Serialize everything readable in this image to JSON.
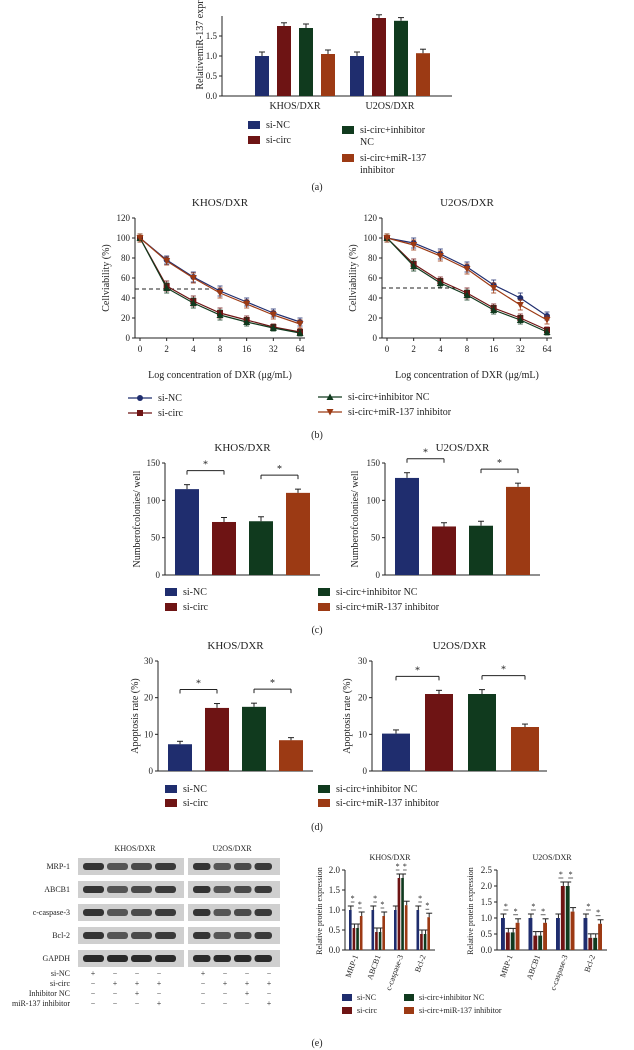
{
  "colors": {
    "si_NC": "#1f2d6e",
    "si_circ": "#6e1414",
    "si_circ_inhibitor_NC": "#103a1e",
    "si_circ_miR137_inhibitor": "#9c3a14",
    "axis": "#222222"
  },
  "panel_labels": [
    "(a)",
    "(b)",
    "(c)",
    "(d)",
    "(e)"
  ],
  "legend": {
    "labels": [
      "si-NC",
      "si-circ",
      "si-circ+inhibitor NC",
      "si-circ+miR-137 inhibitor"
    ],
    "panel_a_labels": [
      "si-NC",
      "si-circ",
      "si-circ+inhibitor\nNC",
      "si-circ+miR-137\ninhibitor"
    ]
  },
  "chart_data": [
    {
      "id": "a",
      "type": "bar",
      "ylabel": "RelativemiR-137 expr",
      "categories": [
        "KHOS/DXR",
        "U2OS/DXR"
      ],
      "ylim": [
        0,
        2
      ],
      "yticks": [
        "0.0",
        "0.5",
        "1.0",
        "1.5"
      ],
      "series": [
        {
          "name": "si-NC",
          "values": [
            1.0,
            1.0
          ],
          "errors": [
            0.1,
            0.1
          ]
        },
        {
          "name": "si-circ",
          "values": [
            1.75,
            1.95
          ],
          "errors": [
            0.08,
            0.08
          ]
        },
        {
          "name": "si-circ+inhibitor NC",
          "values": [
            1.7,
            1.88
          ],
          "errors": [
            0.1,
            0.08
          ]
        },
        {
          "name": "si-circ+miR-137 inhibitor",
          "values": [
            1.05,
            1.07
          ],
          "errors": [
            0.1,
            0.1
          ]
        }
      ]
    },
    {
      "id": "b1",
      "type": "line",
      "title": "KHOS/DXR",
      "ylabel": "Cellviability (%)",
      "xlabel": "Log concentration of DXR (μg/mL)",
      "x": [
        "0",
        "2",
        "4",
        "8",
        "16",
        "32",
        "64"
      ],
      "ylim": [
        0,
        120
      ],
      "yticks": [
        "0",
        "20",
        "40",
        "60",
        "80",
        "100",
        "120"
      ],
      "reference_line": 49,
      "series": [
        {
          "name": "si-NC",
          "values": [
            100,
            78,
            61,
            47,
            36,
            25,
            16
          ],
          "errors": [
            4,
            4,
            5,
            5,
            4,
            4,
            4
          ]
        },
        {
          "name": "si-circ",
          "values": [
            100,
            52,
            37,
            25,
            18,
            11,
            6
          ],
          "errors": [
            4,
            5,
            5,
            5,
            4,
            3,
            3
          ]
        },
        {
          "name": "si-circ+inhibitor NC",
          "values": [
            100,
            50,
            35,
            23,
            16,
            10,
            5
          ],
          "errors": [
            4,
            5,
            5,
            5,
            4,
            3,
            3
          ]
        },
        {
          "name": "si-circ+miR-137 inhibitor",
          "values": [
            100,
            77,
            60,
            45,
            34,
            23,
            14
          ],
          "errors": [
            4,
            4,
            5,
            5,
            4,
            4,
            4
          ]
        }
      ]
    },
    {
      "id": "b2",
      "type": "line",
      "title": "U2OS/DXR",
      "ylabel": "Cellviability (%)",
      "xlabel": "Log concentration of DXR (μg/mL)",
      "x": [
        "0",
        "2",
        "4",
        "8",
        "16",
        "32",
        "64"
      ],
      "ylim": [
        0,
        120
      ],
      "yticks": [
        "0",
        "20",
        "40",
        "60",
        "80",
        "100",
        "120"
      ],
      "reference_line": 50,
      "series": [
        {
          "name": "si-NC",
          "values": [
            100,
            95,
            84,
            71,
            53,
            40,
            22
          ],
          "errors": [
            4,
            5,
            5,
            5,
            5,
            5,
            4
          ]
        },
        {
          "name": "si-circ",
          "values": [
            100,
            74,
            57,
            45,
            30,
            20,
            8
          ],
          "errors": [
            4,
            5,
            4,
            5,
            4,
            4,
            3
          ]
        },
        {
          "name": "si-circ+inhibitor NC",
          "values": [
            100,
            72,
            55,
            43,
            28,
            18,
            6
          ],
          "errors": [
            4,
            5,
            4,
            5,
            4,
            4,
            3
          ]
        },
        {
          "name": "si-circ+miR-137 inhibitor",
          "values": [
            100,
            93,
            82,
            69,
            50,
            33,
            18
          ],
          "errors": [
            4,
            5,
            5,
            5,
            5,
            5,
            4
          ]
        }
      ]
    },
    {
      "id": "c1",
      "type": "bar",
      "title": "KHOS/DXR",
      "ylabel": "Numberofcolonies/ well",
      "categories": [
        "si-NC",
        "si-circ",
        "si-circ+inhibitor NC",
        "si-circ+miR-137 inhibitor"
      ],
      "ylim": [
        0,
        150
      ],
      "yticks": [
        "0",
        "50",
        "100",
        "150"
      ],
      "values": [
        115,
        71,
        72,
        110
      ],
      "errors": [
        6,
        6,
        6,
        5
      ],
      "significance": [
        [
          0,
          1,
          "*"
        ],
        [
          2,
          3,
          "*"
        ]
      ]
    },
    {
      "id": "c2",
      "type": "bar",
      "title": "U2OS/DXR",
      "ylabel": "Numberofcolonies/ well",
      "categories": [
        "si-NC",
        "si-circ",
        "si-circ+inhibitor NC",
        "si-circ+miR-137 inhibitor"
      ],
      "ylim": [
        0,
        150
      ],
      "yticks": [
        "0",
        "50",
        "100",
        "150"
      ],
      "values": [
        130,
        65,
        66,
        118
      ],
      "errors": [
        7,
        5,
        6,
        5
      ],
      "significance": [
        [
          0,
          1,
          "*"
        ],
        [
          2,
          3,
          "*"
        ]
      ]
    },
    {
      "id": "d1",
      "type": "bar",
      "title": "KHOS/DXR",
      "ylabel": "Apoptosis rate (%)",
      "categories": [
        "si-NC",
        "si-circ",
        "si-circ+inhibitor NC",
        "si-circ+miR-137 inhibitor"
      ],
      "ylim": [
        0,
        30
      ],
      "yticks": [
        "0",
        "10",
        "20",
        "30"
      ],
      "values": [
        7.3,
        17.2,
        17.5,
        8.4
      ],
      "errors": [
        0.8,
        1.2,
        1.0,
        0.7
      ],
      "significance": [
        [
          0,
          1,
          "*"
        ],
        [
          2,
          3,
          "*"
        ]
      ]
    },
    {
      "id": "d2",
      "type": "bar",
      "title": "U2OS/DXR",
      "ylabel": "Apoptosis rate (%)",
      "categories": [
        "si-NC",
        "si-circ",
        "si-circ+inhibitor NC",
        "si-circ+miR-137 inhibitor"
      ],
      "ylim": [
        0,
        30
      ],
      "yticks": [
        "0",
        "10",
        "20",
        "30"
      ],
      "values": [
        10.2,
        21.0,
        21.0,
        12.0
      ],
      "errors": [
        1.0,
        1.0,
        1.2,
        0.8
      ],
      "significance": [
        [
          0,
          1,
          "*"
        ],
        [
          2,
          3,
          "*"
        ]
      ]
    },
    {
      "id": "e1",
      "type": "bar",
      "title": "KHOS/DXR",
      "ylabel": "Relative protein expression",
      "categories": [
        "MRP-1",
        "ABCB1",
        "c-caspase-3",
        "Bcl-2"
      ],
      "ylim": [
        0,
        2.0
      ],
      "yticks": [
        "0.0",
        "0.5",
        "1.0",
        "1.5",
        "2.0"
      ],
      "series": [
        {
          "name": "si-NC",
          "values": [
            1.0,
            1.0,
            1.0,
            1.0
          ]
        },
        {
          "name": "si-circ",
          "values": [
            0.55,
            0.45,
            1.8,
            0.4
          ]
        },
        {
          "name": "si-circ+inhibitor NC",
          "values": [
            0.55,
            0.45,
            1.8,
            0.4
          ]
        },
        {
          "name": "si-circ+miR-137 inhibitor",
          "values": [
            0.85,
            0.85,
            1.12,
            0.82
          ]
        }
      ]
    },
    {
      "id": "e2",
      "type": "bar",
      "title": "U2OS/DXR",
      "ylabel": "Relative protein expression",
      "categories": [
        "MRP-1",
        "ABCB1",
        "c-caspase-3",
        "Bcl-2"
      ],
      "ylim": [
        0,
        2.5
      ],
      "yticks": [
        "0.0",
        "0.5",
        "1.0",
        "1.5",
        "2.0",
        "2.5"
      ],
      "series": [
        {
          "name": "si-NC",
          "values": [
            1.0,
            1.0,
            1.0,
            1.0
          ]
        },
        {
          "name": "si-circ",
          "values": [
            0.55,
            0.45,
            2.0,
            0.38
          ]
        },
        {
          "name": "si-circ+inhibitor NC",
          "values": [
            0.55,
            0.45,
            2.0,
            0.38
          ]
        },
        {
          "name": "si-circ+miR-137 inhibitor",
          "values": [
            0.85,
            0.85,
            1.2,
            0.82
          ]
        }
      ]
    }
  ],
  "western_blot": {
    "cell_lines": [
      "KHOS/DXR",
      "U2OS/DXR"
    ],
    "proteins": [
      "MRP-1",
      "ABCB1",
      "c-caspase-3",
      "Bcl-2",
      "GAPDH"
    ],
    "condition_rows": [
      {
        "label": "si-NC",
        "marks": [
          "+",
          "−",
          "−",
          "−",
          "+",
          "−",
          "−",
          "−"
        ]
      },
      {
        "label": "si-circ",
        "marks": [
          "−",
          "+",
          "+",
          "+",
          "−",
          "+",
          "+",
          "+"
        ]
      },
      {
        "label": "Inhibitor NC",
        "marks": [
          "−",
          "−",
          "+",
          "−",
          "−",
          "−",
          "+",
          "−"
        ]
      },
      {
        "label": "miR-137 inhibitor",
        "marks": [
          "−",
          "−",
          "−",
          "+",
          "−",
          "−",
          "−",
          "+"
        ]
      }
    ]
  }
}
